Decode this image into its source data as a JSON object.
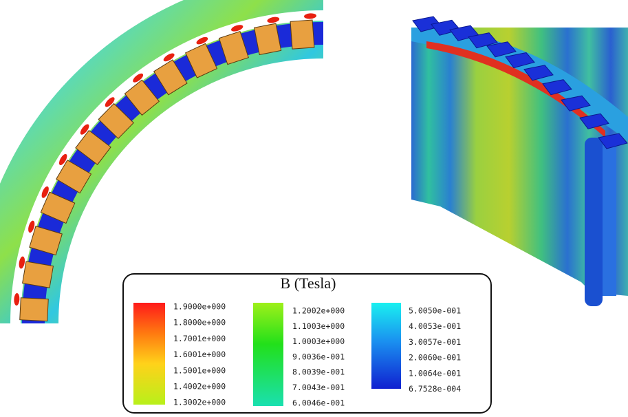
{
  "legend": {
    "title": "B (Tesla)",
    "columns": [
      {
        "labels": [
          "1.9000e+000",
          "1.8000e+000",
          "1.7001e+000",
          "1.6001e+000",
          "1.5001e+000",
          "1.4002e+000",
          "1.3002e+000"
        ]
      },
      {
        "labels": [
          "1.2002e+000",
          "1.1003e+000",
          "1.0003e+000",
          "9.0036e-001",
          "8.0039e-001",
          "7.0043e-001",
          "6.0046e-001"
        ]
      },
      {
        "labels": [
          "5.0050e-001",
          "4.0053e-001",
          "3.0057e-001",
          "2.0060e-001",
          "1.0064e-001",
          "6.7528e-004"
        ]
      }
    ]
  }
}
